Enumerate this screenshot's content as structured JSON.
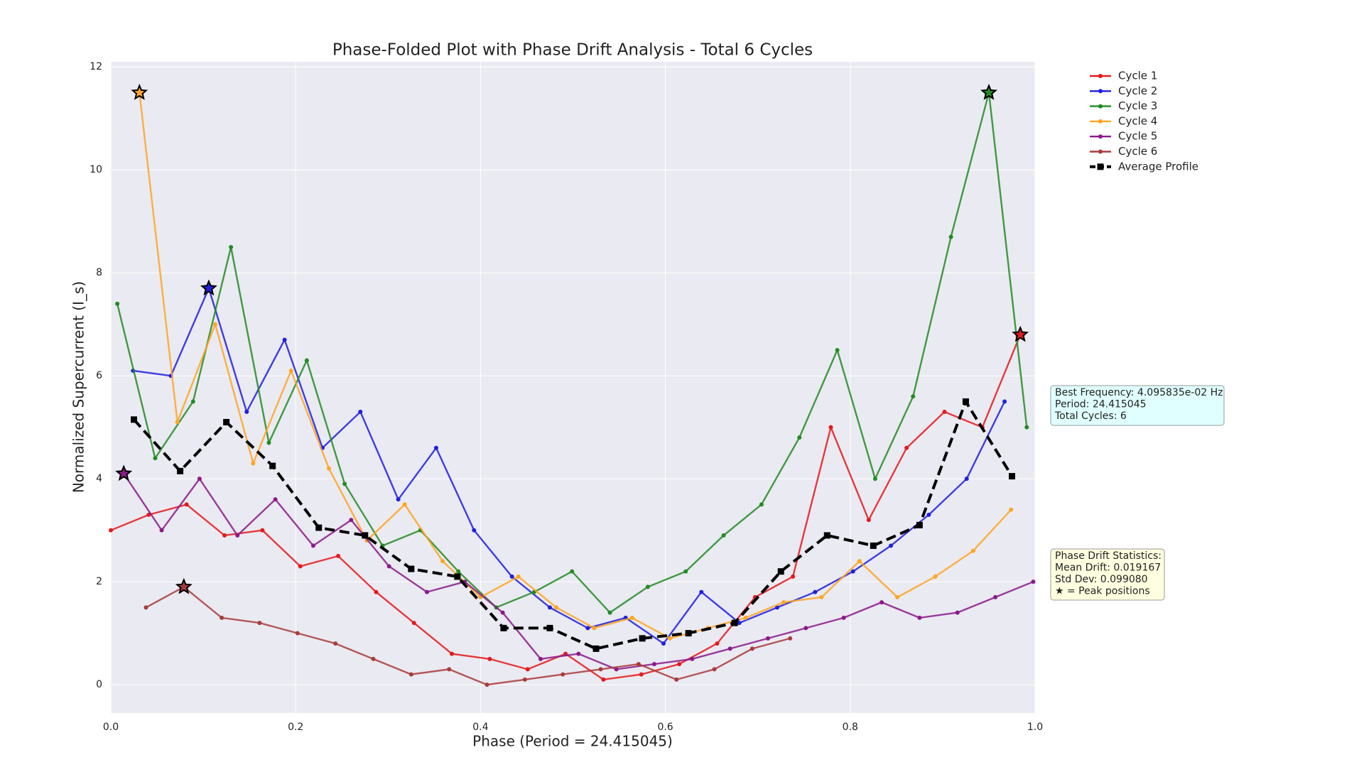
{
  "chart_data": {
    "type": "line",
    "title": "Phase-Folded Plot with Phase Drift Analysis - Total 6 Cycles",
    "x_label": "Phase (Period = 24.415045)",
    "y_label": "Normalized Supercurrent (I_s)",
    "xlim": [
      0,
      1
    ],
    "ylim": [
      -0.55,
      12.1
    ],
    "xticks": [
      {
        "value": 0,
        "label": "0.0"
      },
      {
        "value": 0.2,
        "label": "0.2"
      },
      {
        "value": 0.4,
        "label": "0.4"
      },
      {
        "value": 0.6,
        "label": "0.6"
      },
      {
        "value": 0.8,
        "label": "0.8"
      },
      {
        "value": 1,
        "label": "1.0"
      }
    ],
    "yticks": [
      0,
      2,
      4,
      6,
      8,
      10,
      12
    ],
    "grid": true,
    "legend": "upper right outside",
    "series": [
      {
        "name": "Cycle 1",
        "color": "#e41a1c",
        "marker": "circle",
        "x": [
          0.0,
          0.041,
          0.082,
          0.123,
          0.164,
          0.205,
          0.246,
          0.287,
          0.328,
          0.369,
          0.41,
          0.451,
          0.492,
          0.533,
          0.574,
          0.615,
          0.656,
          0.697,
          0.738,
          0.779,
          0.82,
          0.861,
          0.902,
          0.943,
          0.984
        ],
        "values": [
          3.0,
          3.3,
          3.5,
          2.9,
          3.0,
          2.3,
          2.5,
          1.8,
          1.2,
          0.6,
          0.5,
          0.3,
          0.6,
          0.1,
          0.2,
          0.4,
          0.8,
          1.7,
          2.1,
          5.0,
          3.2,
          4.6,
          5.3,
          5.0,
          6.8
        ],
        "peak": [
          0.984,
          6.8
        ]
      },
      {
        "name": "Cycle 2",
        "color": "#1f1fe0",
        "marker": "circle",
        "x": [
          0.024,
          0.065,
          0.106,
          0.147,
          0.188,
          0.229,
          0.27,
          0.311,
          0.352,
          0.393,
          0.434,
          0.475,
          0.516,
          0.557,
          0.598,
          0.639,
          0.68,
          0.721,
          0.762,
          0.803,
          0.844,
          0.885,
          0.926,
          0.967
        ],
        "values": [
          6.1,
          6.0,
          7.7,
          5.3,
          6.7,
          4.6,
          5.3,
          3.6,
          4.6,
          3.0,
          2.1,
          1.5,
          1.1,
          1.3,
          0.8,
          1.8,
          1.2,
          1.5,
          1.8,
          2.2,
          2.7,
          3.3,
          4.0,
          5.5
        ],
        "peak": [
          0.106,
          7.7
        ]
      },
      {
        "name": "Cycle 3",
        "color": "#228b22",
        "marker": "circle",
        "x": [
          0.007,
          0.048,
          0.089,
          0.13,
          0.171,
          0.212,
          0.253,
          0.294,
          0.335,
          0.376,
          0.417,
          0.458,
          0.499,
          0.54,
          0.581,
          0.622,
          0.663,
          0.704,
          0.745,
          0.786,
          0.827,
          0.868,
          0.909,
          0.95,
          0.991
        ],
        "values": [
          7.4,
          4.4,
          5.5,
          8.5,
          4.7,
          6.3,
          3.9,
          2.7,
          3.0,
          2.2,
          1.5,
          1.8,
          2.2,
          1.4,
          1.9,
          2.2,
          2.9,
          3.5,
          4.8,
          6.5,
          4.0,
          5.6,
          8.7,
          11.5,
          5.0
        ],
        "peak": [
          0.95,
          11.5
        ]
      },
      {
        "name": "Cycle 4",
        "color": "#ffa520",
        "marker": "circle",
        "x": [
          0.031,
          0.072,
          0.113,
          0.154,
          0.195,
          0.236,
          0.277,
          0.318,
          0.359,
          0.4,
          0.441,
          0.482,
          0.523,
          0.564,
          0.605,
          0.646,
          0.687,
          0.728,
          0.769,
          0.81,
          0.851,
          0.892,
          0.933,
          0.974
        ],
        "values": [
          11.5,
          5.1,
          7.0,
          4.3,
          6.1,
          4.2,
          2.8,
          3.5,
          2.4,
          1.7,
          2.1,
          1.5,
          1.1,
          1.3,
          0.9,
          1.1,
          1.3,
          1.6,
          1.7,
          2.4,
          1.7,
          2.1,
          2.6,
          3.4
        ],
        "peak": [
          0.031,
          11.5
        ]
      },
      {
        "name": "Cycle 5",
        "color": "#8b1a8b",
        "marker": "circle",
        "x": [
          0.014,
          0.055,
          0.096,
          0.137,
          0.178,
          0.219,
          0.26,
          0.301,
          0.342,
          0.383,
          0.424,
          0.465,
          0.506,
          0.547,
          0.588,
          0.629,
          0.67,
          0.711,
          0.752,
          0.793,
          0.834,
          0.875,
          0.916,
          0.957,
          0.998
        ],
        "values": [
          4.1,
          3.0,
          4.0,
          2.9,
          3.6,
          2.7,
          3.2,
          2.3,
          1.8,
          2.0,
          1.4,
          0.5,
          0.6,
          0.3,
          0.4,
          0.5,
          0.7,
          0.9,
          1.1,
          1.3,
          1.6,
          1.3,
          1.4,
          1.7,
          2.0
        ],
        "peak": [
          0.014,
          4.1
        ]
      },
      {
        "name": "Cycle 6",
        "color": "#a83c3c",
        "marker": "circle",
        "x": [
          0.038,
          0.079,
          0.12,
          0.161,
          0.202,
          0.243,
          0.284,
          0.325,
          0.366,
          0.407,
          0.448,
          0.489,
          0.53,
          0.571,
          0.612,
          0.653,
          0.694,
          0.735
        ],
        "values": [
          1.5,
          1.9,
          1.3,
          1.2,
          1.0,
          0.8,
          0.5,
          0.2,
          0.3,
          0.0,
          0.1,
          0.2,
          0.3,
          0.4,
          0.1,
          0.3,
          0.7,
          0.9
        ],
        "peak": [
          0.079,
          1.9
        ]
      },
      {
        "name": "Average Profile",
        "color": "#000000",
        "marker": "square",
        "dashed": true,
        "x": [
          0.025,
          0.075,
          0.125,
          0.175,
          0.225,
          0.275,
          0.325,
          0.375,
          0.425,
          0.475,
          0.525,
          0.575,
          0.625,
          0.675,
          0.725,
          0.775,
          0.825,
          0.875,
          0.925,
          0.975
        ],
        "values": [
          5.15,
          4.15,
          5.1,
          4.25,
          3.05,
          2.9,
          2.25,
          2.1,
          1.1,
          1.1,
          0.7,
          0.9,
          1.0,
          1.2,
          2.2,
          2.9,
          2.7,
          3.1,
          5.5,
          4.05
        ]
      }
    ],
    "annotations": [
      {
        "lines": [
          "Best Frequency: 4.095835e-02 Hz",
          "Period: 24.415045",
          "Total Cycles: 6"
        ],
        "color": "#e0ffff"
      },
      {
        "lines": [
          "Phase Drift Statistics:",
          "Mean Drift: 0.019167",
          "Std Dev: 0.099080",
          "★ = Peak positions"
        ],
        "color": "#ffffe0"
      }
    ]
  }
}
